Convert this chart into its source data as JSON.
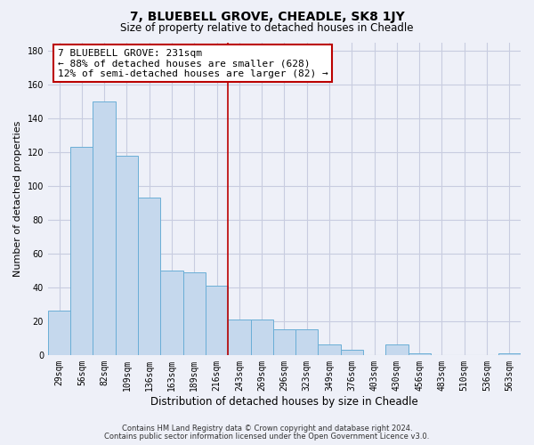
{
  "title": "7, BLUEBELL GROVE, CHEADLE, SK8 1JY",
  "subtitle": "Size of property relative to detached houses in Cheadle",
  "xlabel": "Distribution of detached houses by size in Cheadle",
  "ylabel": "Number of detached properties",
  "bar_labels": [
    "29sqm",
    "56sqm",
    "82sqm",
    "109sqm",
    "136sqm",
    "163sqm",
    "189sqm",
    "216sqm",
    "243sqm",
    "269sqm",
    "296sqm",
    "323sqm",
    "349sqm",
    "376sqm",
    "403sqm",
    "430sqm",
    "456sqm",
    "483sqm",
    "510sqm",
    "536sqm",
    "563sqm"
  ],
  "bar_values": [
    26,
    123,
    150,
    118,
    93,
    50,
    49,
    41,
    21,
    21,
    15,
    15,
    6,
    3,
    0,
    6,
    1,
    0,
    0,
    0,
    1
  ],
  "bar_color": "#c5d8ed",
  "bar_edge_color": "#6aaed6",
  "vline_x": 7.5,
  "vline_color": "#bb0000",
  "annotation_title": "7 BLUEBELL GROVE: 231sqm",
  "annotation_line1": "← 88% of detached houses are smaller (628)",
  "annotation_line2": "12% of semi-detached houses are larger (82) →",
  "annotation_box_color": "#ffffff",
  "annotation_box_edge": "#bb0000",
  "ylim": [
    0,
    185
  ],
  "yticks": [
    0,
    20,
    40,
    60,
    80,
    100,
    120,
    140,
    160,
    180
  ],
  "footer1": "Contains HM Land Registry data © Crown copyright and database right 2024.",
  "footer2": "Contains public sector information licensed under the Open Government Licence v3.0.",
  "background_color": "#eef0f8",
  "grid_color": "#c8cce0",
  "title_fontsize": 10,
  "subtitle_fontsize": 8.5,
  "ylabel_fontsize": 8,
  "xlabel_fontsize": 8.5,
  "tick_fontsize": 7,
  "footer_fontsize": 6,
  "annot_fontsize": 8
}
